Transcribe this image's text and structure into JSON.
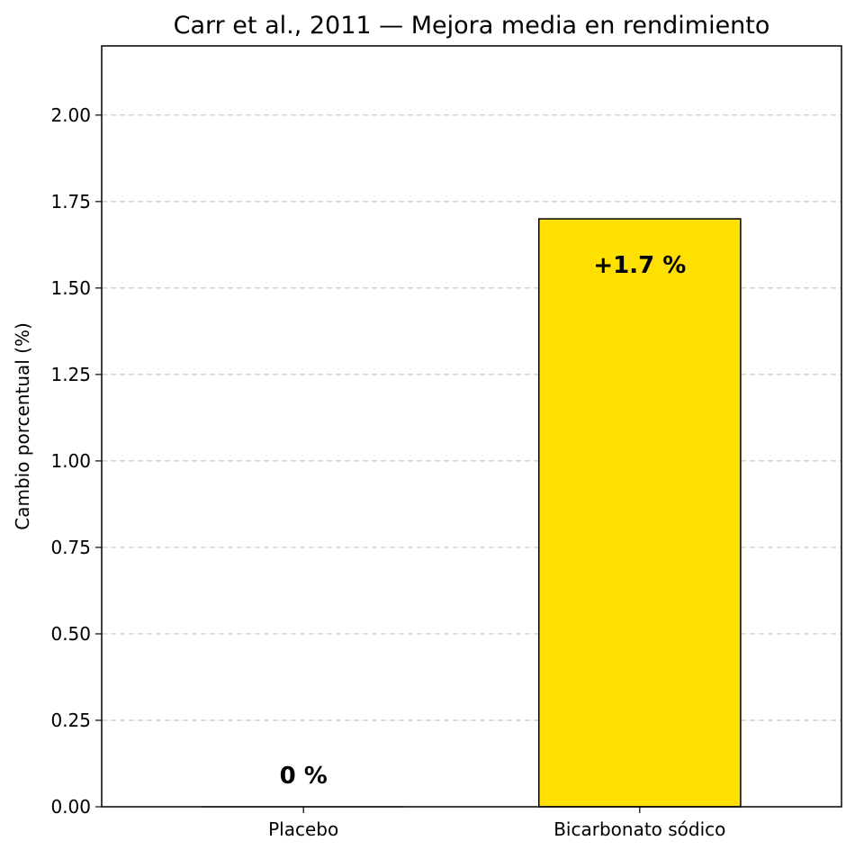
{
  "chart_data": {
    "type": "bar",
    "title": "Carr et al., 2011 — Mejora media en rendimiento",
    "xlabel": "",
    "ylabel": "Cambio porcentual (%)",
    "categories": [
      "Placebo",
      "Bicarbonato sódico"
    ],
    "values": [
      0,
      1.7
    ],
    "data_labels": [
      "0 %",
      "+1.7 %"
    ],
    "bar_colors": [
      "#C7C7C7",
      "#FFE000"
    ],
    "edge_color": "#000000",
    "ylim": [
      0,
      2.2
    ],
    "yticks": [
      0,
      0.25,
      0.5,
      0.75,
      1.0,
      1.25,
      1.5,
      1.75,
      2.0
    ],
    "ytick_labels": [
      "0.00",
      "0.25",
      "0.50",
      "0.75",
      "1.00",
      "1.25",
      "1.50",
      "1.75",
      "2.00"
    ],
    "grid": "y, dashed",
    "grid_color": "#c8c8c8"
  }
}
